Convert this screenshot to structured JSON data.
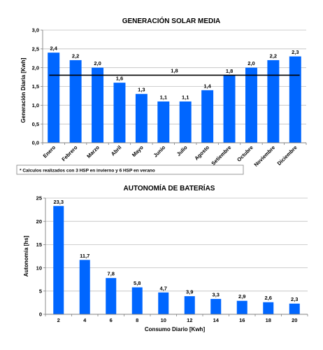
{
  "chart_data": [
    {
      "type": "bar",
      "title": "GENERACIÓN SOLAR MEDIA",
      "xlabel": "",
      "ylabel": "Generación Diaria [Kwh]",
      "categories": [
        "Enero",
        "Febrero",
        "Marzo",
        "Abril",
        "Mayo",
        "Junio",
        "Julio",
        "Agosto",
        "Setiembre",
        "Octubre",
        "Noviembre",
        "Diciembre"
      ],
      "values": [
        2.4,
        2.2,
        2.0,
        1.6,
        1.3,
        1.1,
        1.1,
        1.4,
        1.8,
        2.0,
        2.2,
        2.3
      ],
      "data_labels": [
        "2,4",
        "2,2",
        "2,0",
        "1,6",
        "1,3",
        "1,1",
        "1,1",
        "1,4",
        "1,8",
        "2,0",
        "2,2",
        "2,3"
      ],
      "yticks": [
        0,
        0.5,
        1,
        1.5,
        2,
        2.5,
        3
      ],
      "ytick_labels": [
        "0,0",
        "0,5",
        "1,0",
        "1,5",
        "2,0",
        "2,5",
        "3,0"
      ],
      "ylim": [
        0,
        3
      ],
      "grid": true,
      "bar_color": "#0066ff",
      "reference_line": {
        "value": 1.8,
        "label": "1,8",
        "color": "#000000"
      },
      "footnote": "* Calculos realizados con 3 HSP en invierno y 6 HSP en verano"
    },
    {
      "type": "bar",
      "title": "AUTONOMÍA DE BATERÍAS",
      "xlabel": "Consumo Diario [Kwh]",
      "ylabel": "Autonomía [hs]",
      "categories": [
        "2",
        "4",
        "6",
        "8",
        "10",
        "12",
        "14",
        "16",
        "18",
        "20"
      ],
      "values": [
        23.3,
        11.7,
        7.8,
        5.8,
        4.7,
        3.9,
        3.3,
        2.9,
        2.6,
        2.3
      ],
      "data_labels": [
        "23,3",
        "11,7",
        "7,8",
        "5,8",
        "4,7",
        "3,9",
        "3,3",
        "2,9",
        "2,6",
        "2,3"
      ],
      "yticks": [
        0,
        5,
        10,
        15,
        20,
        25
      ],
      "ytick_labels": [
        "0",
        "5",
        "10",
        "15",
        "20",
        "25"
      ],
      "ylim": [
        0,
        25
      ],
      "grid": true,
      "bar_color": "#0066ff"
    }
  ]
}
